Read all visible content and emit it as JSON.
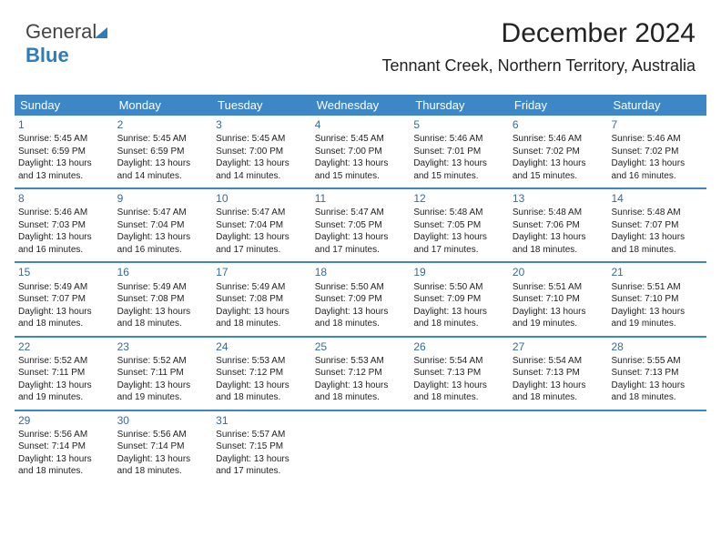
{
  "logo": {
    "word1": "General",
    "word2": "Blue"
  },
  "title": "December 2024",
  "subtitle": "Tennant Creek, Northern Territory, Australia",
  "colors": {
    "header_bg": "#3d87c7",
    "header_text": "#ffffff",
    "daynum": "#3a6a99",
    "rule": "#3d87c7",
    "logo_blue": "#2e7cc0"
  },
  "day_headers": [
    "Sunday",
    "Monday",
    "Tuesday",
    "Wednesday",
    "Thursday",
    "Friday",
    "Saturday"
  ],
  "weeks": [
    [
      {
        "n": "1",
        "sr": "Sunrise: 5:45 AM",
        "ss": "Sunset: 6:59 PM",
        "d1": "Daylight: 13 hours",
        "d2": "and 13 minutes."
      },
      {
        "n": "2",
        "sr": "Sunrise: 5:45 AM",
        "ss": "Sunset: 6:59 PM",
        "d1": "Daylight: 13 hours",
        "d2": "and 14 minutes."
      },
      {
        "n": "3",
        "sr": "Sunrise: 5:45 AM",
        "ss": "Sunset: 7:00 PM",
        "d1": "Daylight: 13 hours",
        "d2": "and 14 minutes."
      },
      {
        "n": "4",
        "sr": "Sunrise: 5:45 AM",
        "ss": "Sunset: 7:00 PM",
        "d1": "Daylight: 13 hours",
        "d2": "and 15 minutes."
      },
      {
        "n": "5",
        "sr": "Sunrise: 5:46 AM",
        "ss": "Sunset: 7:01 PM",
        "d1": "Daylight: 13 hours",
        "d2": "and 15 minutes."
      },
      {
        "n": "6",
        "sr": "Sunrise: 5:46 AM",
        "ss": "Sunset: 7:02 PM",
        "d1": "Daylight: 13 hours",
        "d2": "and 15 minutes."
      },
      {
        "n": "7",
        "sr": "Sunrise: 5:46 AM",
        "ss": "Sunset: 7:02 PM",
        "d1": "Daylight: 13 hours",
        "d2": "and 16 minutes."
      }
    ],
    [
      {
        "n": "8",
        "sr": "Sunrise: 5:46 AM",
        "ss": "Sunset: 7:03 PM",
        "d1": "Daylight: 13 hours",
        "d2": "and 16 minutes."
      },
      {
        "n": "9",
        "sr": "Sunrise: 5:47 AM",
        "ss": "Sunset: 7:04 PM",
        "d1": "Daylight: 13 hours",
        "d2": "and 16 minutes."
      },
      {
        "n": "10",
        "sr": "Sunrise: 5:47 AM",
        "ss": "Sunset: 7:04 PM",
        "d1": "Daylight: 13 hours",
        "d2": "and 17 minutes."
      },
      {
        "n": "11",
        "sr": "Sunrise: 5:47 AM",
        "ss": "Sunset: 7:05 PM",
        "d1": "Daylight: 13 hours",
        "d2": "and 17 minutes."
      },
      {
        "n": "12",
        "sr": "Sunrise: 5:48 AM",
        "ss": "Sunset: 7:05 PM",
        "d1": "Daylight: 13 hours",
        "d2": "and 17 minutes."
      },
      {
        "n": "13",
        "sr": "Sunrise: 5:48 AM",
        "ss": "Sunset: 7:06 PM",
        "d1": "Daylight: 13 hours",
        "d2": "and 18 minutes."
      },
      {
        "n": "14",
        "sr": "Sunrise: 5:48 AM",
        "ss": "Sunset: 7:07 PM",
        "d1": "Daylight: 13 hours",
        "d2": "and 18 minutes."
      }
    ],
    [
      {
        "n": "15",
        "sr": "Sunrise: 5:49 AM",
        "ss": "Sunset: 7:07 PM",
        "d1": "Daylight: 13 hours",
        "d2": "and 18 minutes."
      },
      {
        "n": "16",
        "sr": "Sunrise: 5:49 AM",
        "ss": "Sunset: 7:08 PM",
        "d1": "Daylight: 13 hours",
        "d2": "and 18 minutes."
      },
      {
        "n": "17",
        "sr": "Sunrise: 5:49 AM",
        "ss": "Sunset: 7:08 PM",
        "d1": "Daylight: 13 hours",
        "d2": "and 18 minutes."
      },
      {
        "n": "18",
        "sr": "Sunrise: 5:50 AM",
        "ss": "Sunset: 7:09 PM",
        "d1": "Daylight: 13 hours",
        "d2": "and 18 minutes."
      },
      {
        "n": "19",
        "sr": "Sunrise: 5:50 AM",
        "ss": "Sunset: 7:09 PM",
        "d1": "Daylight: 13 hours",
        "d2": "and 18 minutes."
      },
      {
        "n": "20",
        "sr": "Sunrise: 5:51 AM",
        "ss": "Sunset: 7:10 PM",
        "d1": "Daylight: 13 hours",
        "d2": "and 19 minutes."
      },
      {
        "n": "21",
        "sr": "Sunrise: 5:51 AM",
        "ss": "Sunset: 7:10 PM",
        "d1": "Daylight: 13 hours",
        "d2": "and 19 minutes."
      }
    ],
    [
      {
        "n": "22",
        "sr": "Sunrise: 5:52 AM",
        "ss": "Sunset: 7:11 PM",
        "d1": "Daylight: 13 hours",
        "d2": "and 19 minutes."
      },
      {
        "n": "23",
        "sr": "Sunrise: 5:52 AM",
        "ss": "Sunset: 7:11 PM",
        "d1": "Daylight: 13 hours",
        "d2": "and 19 minutes."
      },
      {
        "n": "24",
        "sr": "Sunrise: 5:53 AM",
        "ss": "Sunset: 7:12 PM",
        "d1": "Daylight: 13 hours",
        "d2": "and 18 minutes."
      },
      {
        "n": "25",
        "sr": "Sunrise: 5:53 AM",
        "ss": "Sunset: 7:12 PM",
        "d1": "Daylight: 13 hours",
        "d2": "and 18 minutes."
      },
      {
        "n": "26",
        "sr": "Sunrise: 5:54 AM",
        "ss": "Sunset: 7:13 PM",
        "d1": "Daylight: 13 hours",
        "d2": "and 18 minutes."
      },
      {
        "n": "27",
        "sr": "Sunrise: 5:54 AM",
        "ss": "Sunset: 7:13 PM",
        "d1": "Daylight: 13 hours",
        "d2": "and 18 minutes."
      },
      {
        "n": "28",
        "sr": "Sunrise: 5:55 AM",
        "ss": "Sunset: 7:13 PM",
        "d1": "Daylight: 13 hours",
        "d2": "and 18 minutes."
      }
    ],
    [
      {
        "n": "29",
        "sr": "Sunrise: 5:56 AM",
        "ss": "Sunset: 7:14 PM",
        "d1": "Daylight: 13 hours",
        "d2": "and 18 minutes."
      },
      {
        "n": "30",
        "sr": "Sunrise: 5:56 AM",
        "ss": "Sunset: 7:14 PM",
        "d1": "Daylight: 13 hours",
        "d2": "and 18 minutes."
      },
      {
        "n": "31",
        "sr": "Sunrise: 5:57 AM",
        "ss": "Sunset: 7:15 PM",
        "d1": "Daylight: 13 hours",
        "d2": "and 17 minutes."
      },
      null,
      null,
      null,
      null
    ]
  ]
}
